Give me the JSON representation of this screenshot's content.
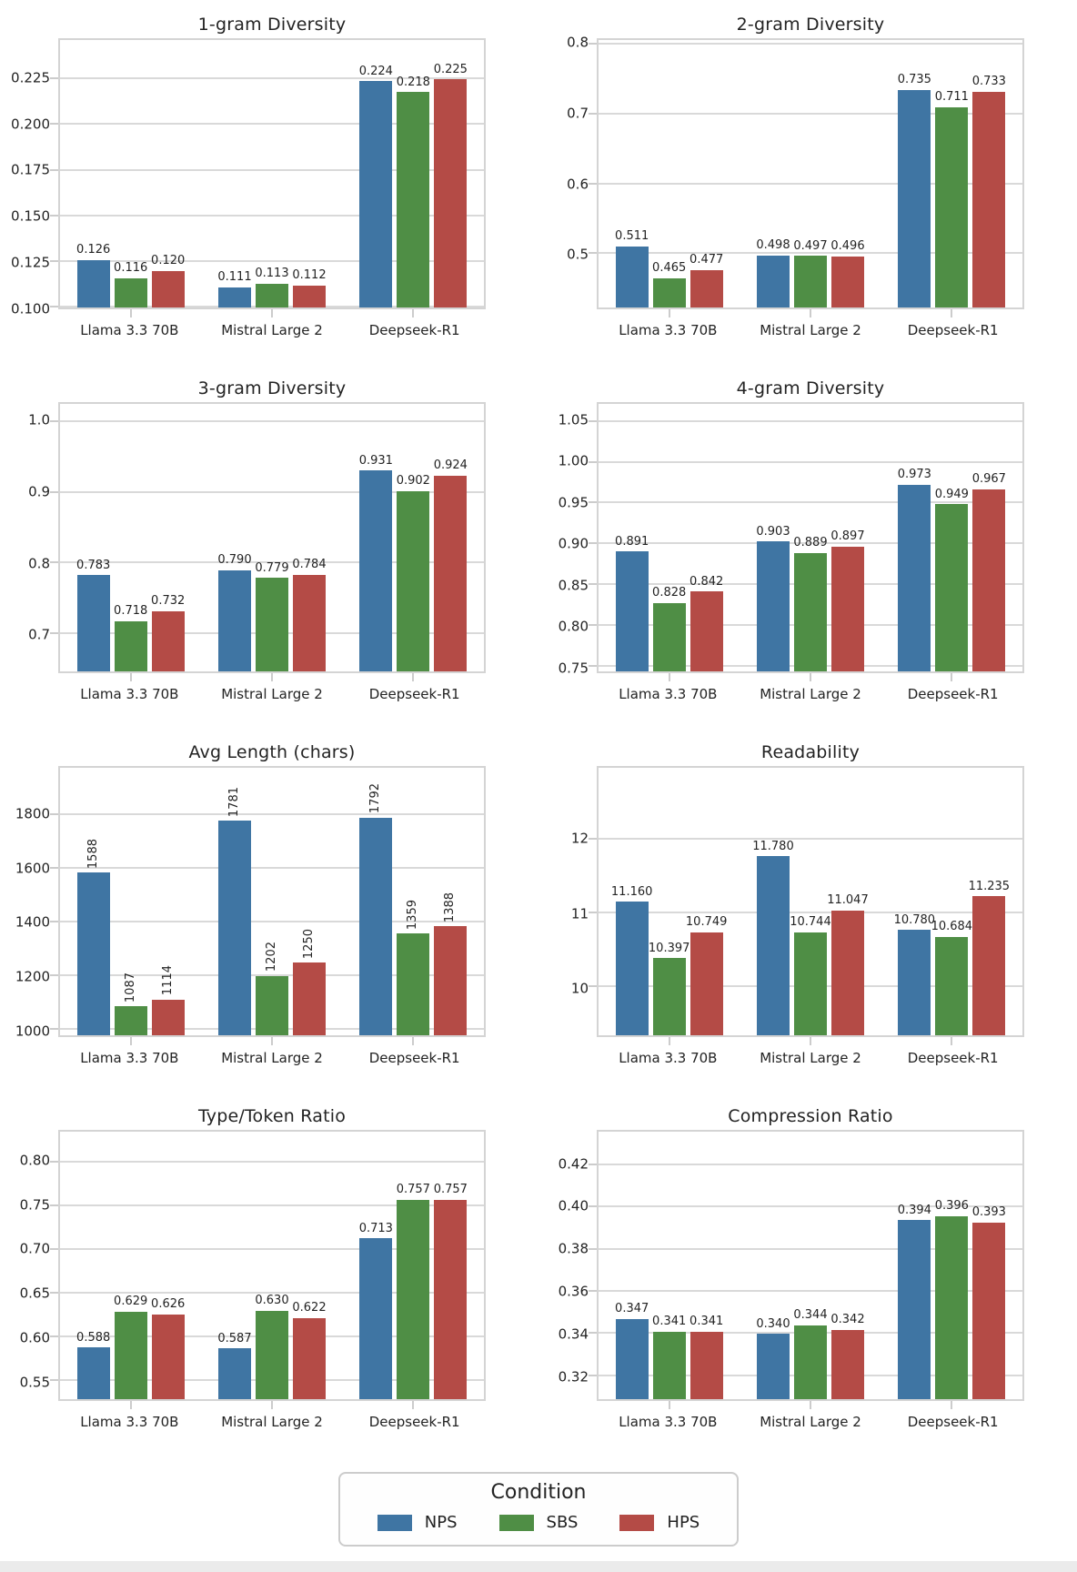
{
  "figure": {
    "layout": "4x2-grid-of-bar-charts"
  },
  "legend": {
    "title": "Condition",
    "entries": [
      {
        "label": "NPS",
        "color": "#3F75A3"
      },
      {
        "label": "SBS",
        "color": "#4F8E45"
      },
      {
        "label": "HPS",
        "color": "#B44B46"
      }
    ]
  },
  "categories": [
    "Llama 3.3 70B",
    "Mistral Large 2",
    "Deepseek-R1"
  ],
  "chart_data": [
    {
      "type": "bar",
      "title": "1-gram Diversity",
      "ylim": [
        0.1,
        0.2465
      ],
      "yticks": [
        {
          "v": 0.1,
          "label": "0.100"
        },
        {
          "v": 0.125,
          "label": "0.125"
        },
        {
          "v": 0.15,
          "label": "0.150"
        },
        {
          "v": 0.175,
          "label": "0.175"
        },
        {
          "v": 0.2,
          "label": "0.200"
        },
        {
          "v": 0.225,
          "label": "0.225"
        }
      ],
      "value_label_rotation": 0,
      "series": [
        {
          "name": "NPS",
          "values": [
            0.126,
            0.111,
            0.224
          ],
          "labels": [
            "0.126",
            "0.111",
            "0.224"
          ]
        },
        {
          "name": "SBS",
          "values": [
            0.116,
            0.113,
            0.218
          ],
          "labels": [
            "0.116",
            "0.113",
            "0.218"
          ]
        },
        {
          "name": "HPS",
          "values": [
            0.12,
            0.112,
            0.225
          ],
          "labels": [
            "0.120",
            "0.112",
            "0.225"
          ]
        }
      ]
    },
    {
      "type": "bar",
      "title": "2-gram Diversity",
      "ylim": [
        0.423,
        0.807
      ],
      "yticks": [
        {
          "v": 0.5,
          "label": "0.5"
        },
        {
          "v": 0.6,
          "label": "0.6"
        },
        {
          "v": 0.7,
          "label": "0.7"
        },
        {
          "v": 0.8,
          "label": "0.8"
        }
      ],
      "value_label_rotation": 0,
      "series": [
        {
          "name": "NPS",
          "values": [
            0.511,
            0.498,
            0.735
          ],
          "labels": [
            "0.511",
            "0.498",
            "0.735"
          ]
        },
        {
          "name": "SBS",
          "values": [
            0.465,
            0.497,
            0.711
          ],
          "labels": [
            "0.465",
            "0.497",
            "0.711"
          ]
        },
        {
          "name": "HPS",
          "values": [
            0.477,
            0.496,
            0.733
          ],
          "labels": [
            "0.477",
            "0.496",
            "0.733"
          ]
        }
      ]
    },
    {
      "type": "bar",
      "title": "3-gram Diversity",
      "ylim": [
        0.647,
        1.0255
      ],
      "yticks": [
        {
          "v": 0.7,
          "label": "0.7"
        },
        {
          "v": 0.8,
          "label": "0.8"
        },
        {
          "v": 0.9,
          "label": "0.9"
        },
        {
          "v": 1.0,
          "label": "1.0"
        }
      ],
      "value_label_rotation": 0,
      "series": [
        {
          "name": "NPS",
          "values": [
            0.783,
            0.79,
            0.931
          ],
          "labels": [
            "0.783",
            "0.790",
            "0.931"
          ]
        },
        {
          "name": "SBS",
          "values": [
            0.718,
            0.779,
            0.902
          ],
          "labels": [
            "0.718",
            "0.779",
            "0.902"
          ]
        },
        {
          "name": "HPS",
          "values": [
            0.732,
            0.784,
            0.924
          ],
          "labels": [
            "0.732",
            "0.784",
            "0.924"
          ]
        }
      ]
    },
    {
      "type": "bar",
      "title": "4-gram Diversity",
      "ylim": [
        0.744,
        1.072
      ],
      "yticks": [
        {
          "v": 0.75,
          "label": "0.75"
        },
        {
          "v": 0.8,
          "label": "0.80"
        },
        {
          "v": 0.85,
          "label": "0.85"
        },
        {
          "v": 0.9,
          "label": "0.90"
        },
        {
          "v": 0.95,
          "label": "0.95"
        },
        {
          "v": 1.0,
          "label": "1.00"
        },
        {
          "v": 1.05,
          "label": "1.05"
        }
      ],
      "value_label_rotation": 0,
      "series": [
        {
          "name": "NPS",
          "values": [
            0.891,
            0.903,
            0.973
          ],
          "labels": [
            "0.891",
            "0.903",
            "0.973"
          ]
        },
        {
          "name": "SBS",
          "values": [
            0.828,
            0.889,
            0.949
          ],
          "labels": [
            "0.828",
            "0.889",
            "0.949"
          ]
        },
        {
          "name": "HPS",
          "values": [
            0.842,
            0.897,
            0.967
          ],
          "labels": [
            "0.842",
            "0.897",
            "0.967"
          ]
        }
      ]
    },
    {
      "type": "bar",
      "title": "Avg Length (chars)",
      "ylim": [
        980,
        1977
      ],
      "yticks": [
        {
          "v": 1000,
          "label": "1000"
        },
        {
          "v": 1200,
          "label": "1200"
        },
        {
          "v": 1400,
          "label": "1400"
        },
        {
          "v": 1600,
          "label": "1600"
        },
        {
          "v": 1800,
          "label": "1800"
        }
      ],
      "value_label_rotation": 90,
      "series": [
        {
          "name": "NPS",
          "values": [
            1588,
            1781,
            1792
          ],
          "labels": [
            "1588",
            "1781",
            "1792"
          ]
        },
        {
          "name": "SBS",
          "values": [
            1087,
            1202,
            1359
          ],
          "labels": [
            "1087",
            "1202",
            "1359"
          ]
        },
        {
          "name": "HPS",
          "values": [
            1114,
            1250,
            1388
          ],
          "labels": [
            "1114",
            "1250",
            "1388"
          ]
        }
      ]
    },
    {
      "type": "bar",
      "title": "Readability",
      "ylim": [
        9.35,
        12.98
      ],
      "yticks": [
        {
          "v": 10,
          "label": "10"
        },
        {
          "v": 11,
          "label": "11"
        },
        {
          "v": 12,
          "label": "12"
        }
      ],
      "value_label_rotation": 0,
      "series": [
        {
          "name": "NPS",
          "values": [
            11.16,
            11.78,
            10.78
          ],
          "labels": [
            "11.160",
            "11.780",
            "10.780"
          ]
        },
        {
          "name": "SBS",
          "values": [
            10.397,
            10.744,
            10.684
          ],
          "labels": [
            "10.397",
            "10.744",
            "10.684"
          ]
        },
        {
          "name": "HPS",
          "values": [
            10.749,
            11.047,
            11.235
          ],
          "labels": [
            "10.749",
            "11.047",
            "11.235"
          ]
        }
      ]
    },
    {
      "type": "bar",
      "title": "Type/Token Ratio",
      "ylim": [
        0.529,
        0.835
      ],
      "yticks": [
        {
          "v": 0.55,
          "label": "0.55"
        },
        {
          "v": 0.6,
          "label": "0.60"
        },
        {
          "v": 0.65,
          "label": "0.65"
        },
        {
          "v": 0.7,
          "label": "0.70"
        },
        {
          "v": 0.75,
          "label": "0.75"
        },
        {
          "v": 0.8,
          "label": "0.80"
        }
      ],
      "value_label_rotation": 0,
      "series": [
        {
          "name": "NPS",
          "values": [
            0.588,
            0.587,
            0.713
          ],
          "labels": [
            "0.588",
            "0.587",
            "0.713"
          ]
        },
        {
          "name": "SBS",
          "values": [
            0.629,
            0.63,
            0.757
          ],
          "labels": [
            "0.629",
            "0.630",
            "0.757"
          ]
        },
        {
          "name": "HPS",
          "values": [
            0.626,
            0.622,
            0.757
          ],
          "labels": [
            "0.626",
            "0.622",
            "0.757"
          ]
        }
      ]
    },
    {
      "type": "bar",
      "title": "Compression Ratio",
      "ylim": [
        0.309,
        0.436
      ],
      "yticks": [
        {
          "v": 0.32,
          "label": "0.32"
        },
        {
          "v": 0.34,
          "label": "0.34"
        },
        {
          "v": 0.36,
          "label": "0.36"
        },
        {
          "v": 0.38,
          "label": "0.38"
        },
        {
          "v": 0.4,
          "label": "0.40"
        },
        {
          "v": 0.42,
          "label": "0.42"
        }
      ],
      "value_label_rotation": 0,
      "series": [
        {
          "name": "NPS",
          "values": [
            0.347,
            0.34,
            0.394
          ],
          "labels": [
            "0.347",
            "0.340",
            "0.394"
          ]
        },
        {
          "name": "SBS",
          "values": [
            0.341,
            0.344,
            0.396
          ],
          "labels": [
            "0.341",
            "0.344",
            "0.396"
          ]
        },
        {
          "name": "HPS",
          "values": [
            0.341,
            0.342,
            0.393
          ],
          "labels": [
            "0.341",
            "0.342",
            "0.393"
          ]
        }
      ]
    }
  ]
}
